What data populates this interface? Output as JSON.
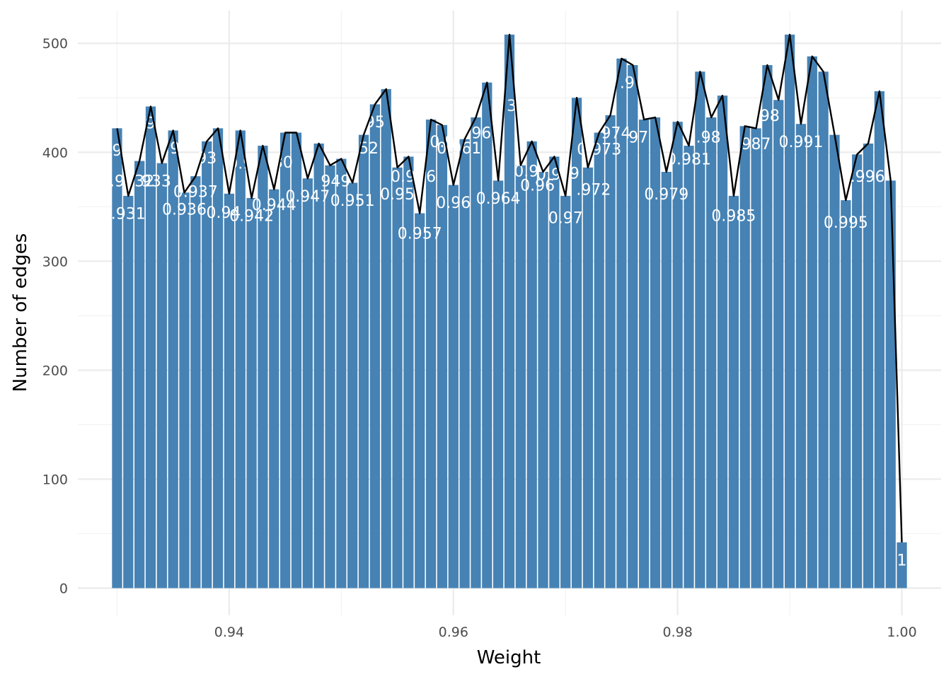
{
  "chart_data": {
    "type": "bar",
    "xlabel": "Weight",
    "ylabel": "Number of edges",
    "xlim": [
      0.9265,
      1.0035
    ],
    "ylim": [
      -25,
      530
    ],
    "x_ticks": [
      0.94,
      0.96,
      0.98,
      1.0
    ],
    "x_tick_labels": [
      "0.94",
      "0.96",
      "0.98",
      "1.00"
    ],
    "y_ticks": [
      0,
      100,
      200,
      300,
      400,
      500
    ],
    "y_tick_labels": [
      "0",
      "100",
      "200",
      "300",
      "400",
      "500"
    ],
    "grid": true,
    "bar_color": "#4682B4",
    "line_color": "#000000",
    "x": [
      0.93,
      0.931,
      0.932,
      0.933,
      0.934,
      0.935,
      0.936,
      0.937,
      0.938,
      0.939,
      0.94,
      0.941,
      0.942,
      0.943,
      0.944,
      0.945,
      0.946,
      0.947,
      0.948,
      0.949,
      0.95,
      0.951,
      0.952,
      0.953,
      0.954,
      0.955,
      0.956,
      0.957,
      0.958,
      0.959,
      0.96,
      0.961,
      0.962,
      0.963,
      0.964,
      0.965,
      0.966,
      0.967,
      0.968,
      0.969,
      0.97,
      0.971,
      0.972,
      0.973,
      0.974,
      0.975,
      0.976,
      0.977,
      0.978,
      0.979,
      0.98,
      0.981,
      0.982,
      0.983,
      0.984,
      0.985,
      0.986,
      0.987,
      0.988,
      0.989,
      0.99,
      0.991,
      0.992,
      0.993,
      0.994,
      0.995,
      0.996,
      0.997,
      0.998,
      0.999,
      1.0
    ],
    "values": [
      422,
      360,
      392,
      442,
      390,
      420,
      363,
      378,
      410,
      422,
      362,
      420,
      358,
      406,
      366,
      418,
      418,
      376,
      408,
      388,
      394,
      372,
      416,
      444,
      458,
      386,
      396,
      344,
      430,
      425,
      370,
      412,
      432,
      464,
      374,
      508,
      388,
      410,
      382,
      396,
      360,
      450,
      386,
      418,
      434,
      486,
      480,
      430,
      432,
      382,
      428,
      406,
      474,
      432,
      452,
      360,
      424,
      422,
      480,
      448,
      508,
      426,
      488,
      474,
      416,
      356,
      398,
      408,
      456,
      374,
      42
    ],
    "data_labels": [
      {
        "text": "9",
        "x": 0.93,
        "y": 402
      },
      {
        "text": "0.93",
        "x": 0.93,
        "y": 374
      },
      {
        "text": ".931",
        "x": 0.931,
        "y": 344
      },
      {
        "text": "932",
        "x": 0.932,
        "y": 374
      },
      {
        "text": "9",
        "x": 0.933,
        "y": 427
      },
      {
        "text": "933",
        "x": 0.9335,
        "y": 374
      },
      {
        "text": "0.9",
        "x": 0.9345,
        "y": 404
      },
      {
        "text": "0.936",
        "x": 0.936,
        "y": 348
      },
      {
        "text": "0.937",
        "x": 0.937,
        "y": 364
      },
      {
        "text": "93",
        "x": 0.938,
        "y": 395
      },
      {
        "text": "0.94",
        "x": 0.9395,
        "y": 345
      },
      {
        "text": "0.942",
        "x": 0.942,
        "y": 342
      },
      {
        "text": "0.9",
        "x": 0.941,
        "y": 390
      },
      {
        "text": "0.944",
        "x": 0.944,
        "y": 352
      },
      {
        "text": "30",
        "x": 0.9448,
        "y": 391
      },
      {
        "text": "0.947",
        "x": 0.947,
        "y": 360
      },
      {
        "text": "949",
        "x": 0.9495,
        "y": 374
      },
      {
        "text": "0.951",
        "x": 0.951,
        "y": 356
      },
      {
        "text": "952",
        "x": 0.952,
        "y": 404
      },
      {
        "text": "95",
        "x": 0.953,
        "y": 428
      },
      {
        "text": "0.9",
        "x": 0.9555,
        "y": 378
      },
      {
        "text": "0.95",
        "x": 0.955,
        "y": 362
      },
      {
        "text": "0.957",
        "x": 0.957,
        "y": 326
      },
      {
        "text": "6",
        "x": 0.958,
        "y": 378
      },
      {
        "text": "0.9",
        "x": 0.959,
        "y": 410
      },
      {
        "text": "0.961",
        "x": 0.9605,
        "y": 404
      },
      {
        "text": "96",
        "x": 0.9625,
        "y": 418
      },
      {
        "text": "0.96",
        "x": 0.96,
        "y": 354
      },
      {
        "text": "0.964",
        "x": 0.964,
        "y": 358
      },
      {
        "text": "3",
        "x": 0.9652,
        "y": 443
      },
      {
        "text": "0.9",
        "x": 0.9665,
        "y": 383
      },
      {
        "text": "0.96",
        "x": 0.9675,
        "y": 370
      },
      {
        "text": "0.9",
        "x": 0.9685,
        "y": 380
      },
      {
        "text": "9",
        "x": 0.9708,
        "y": 381
      },
      {
        "text": "0.97",
        "x": 0.97,
        "y": 340
      },
      {
        "text": ".972",
        "x": 0.9725,
        "y": 366
      },
      {
        "text": "0.973",
        "x": 0.973,
        "y": 403
      },
      {
        "text": "974",
        "x": 0.9745,
        "y": 418
      },
      {
        "text": ".9",
        "x": 0.9755,
        "y": 464
      },
      {
        "text": "97",
        "x": 0.9765,
        "y": 414
      },
      {
        "text": "0.979",
        "x": 0.979,
        "y": 362
      },
      {
        "text": "0.981",
        "x": 0.981,
        "y": 394
      },
      {
        "text": "0.98",
        "x": 0.9823,
        "y": 414
      },
      {
        "text": "0.985",
        "x": 0.985,
        "y": 342
      },
      {
        "text": "987",
        "x": 0.987,
        "y": 408
      },
      {
        "text": ".98",
        "x": 0.988,
        "y": 434
      },
      {
        "text": "0.991",
        "x": 0.991,
        "y": 410
      },
      {
        "text": "0.995",
        "x": 0.995,
        "y": 336
      },
      {
        "text": "0.996",
        "x": 0.9965,
        "y": 378
      },
      {
        "text": "1",
        "x": 1.0,
        "y": 26
      }
    ]
  }
}
